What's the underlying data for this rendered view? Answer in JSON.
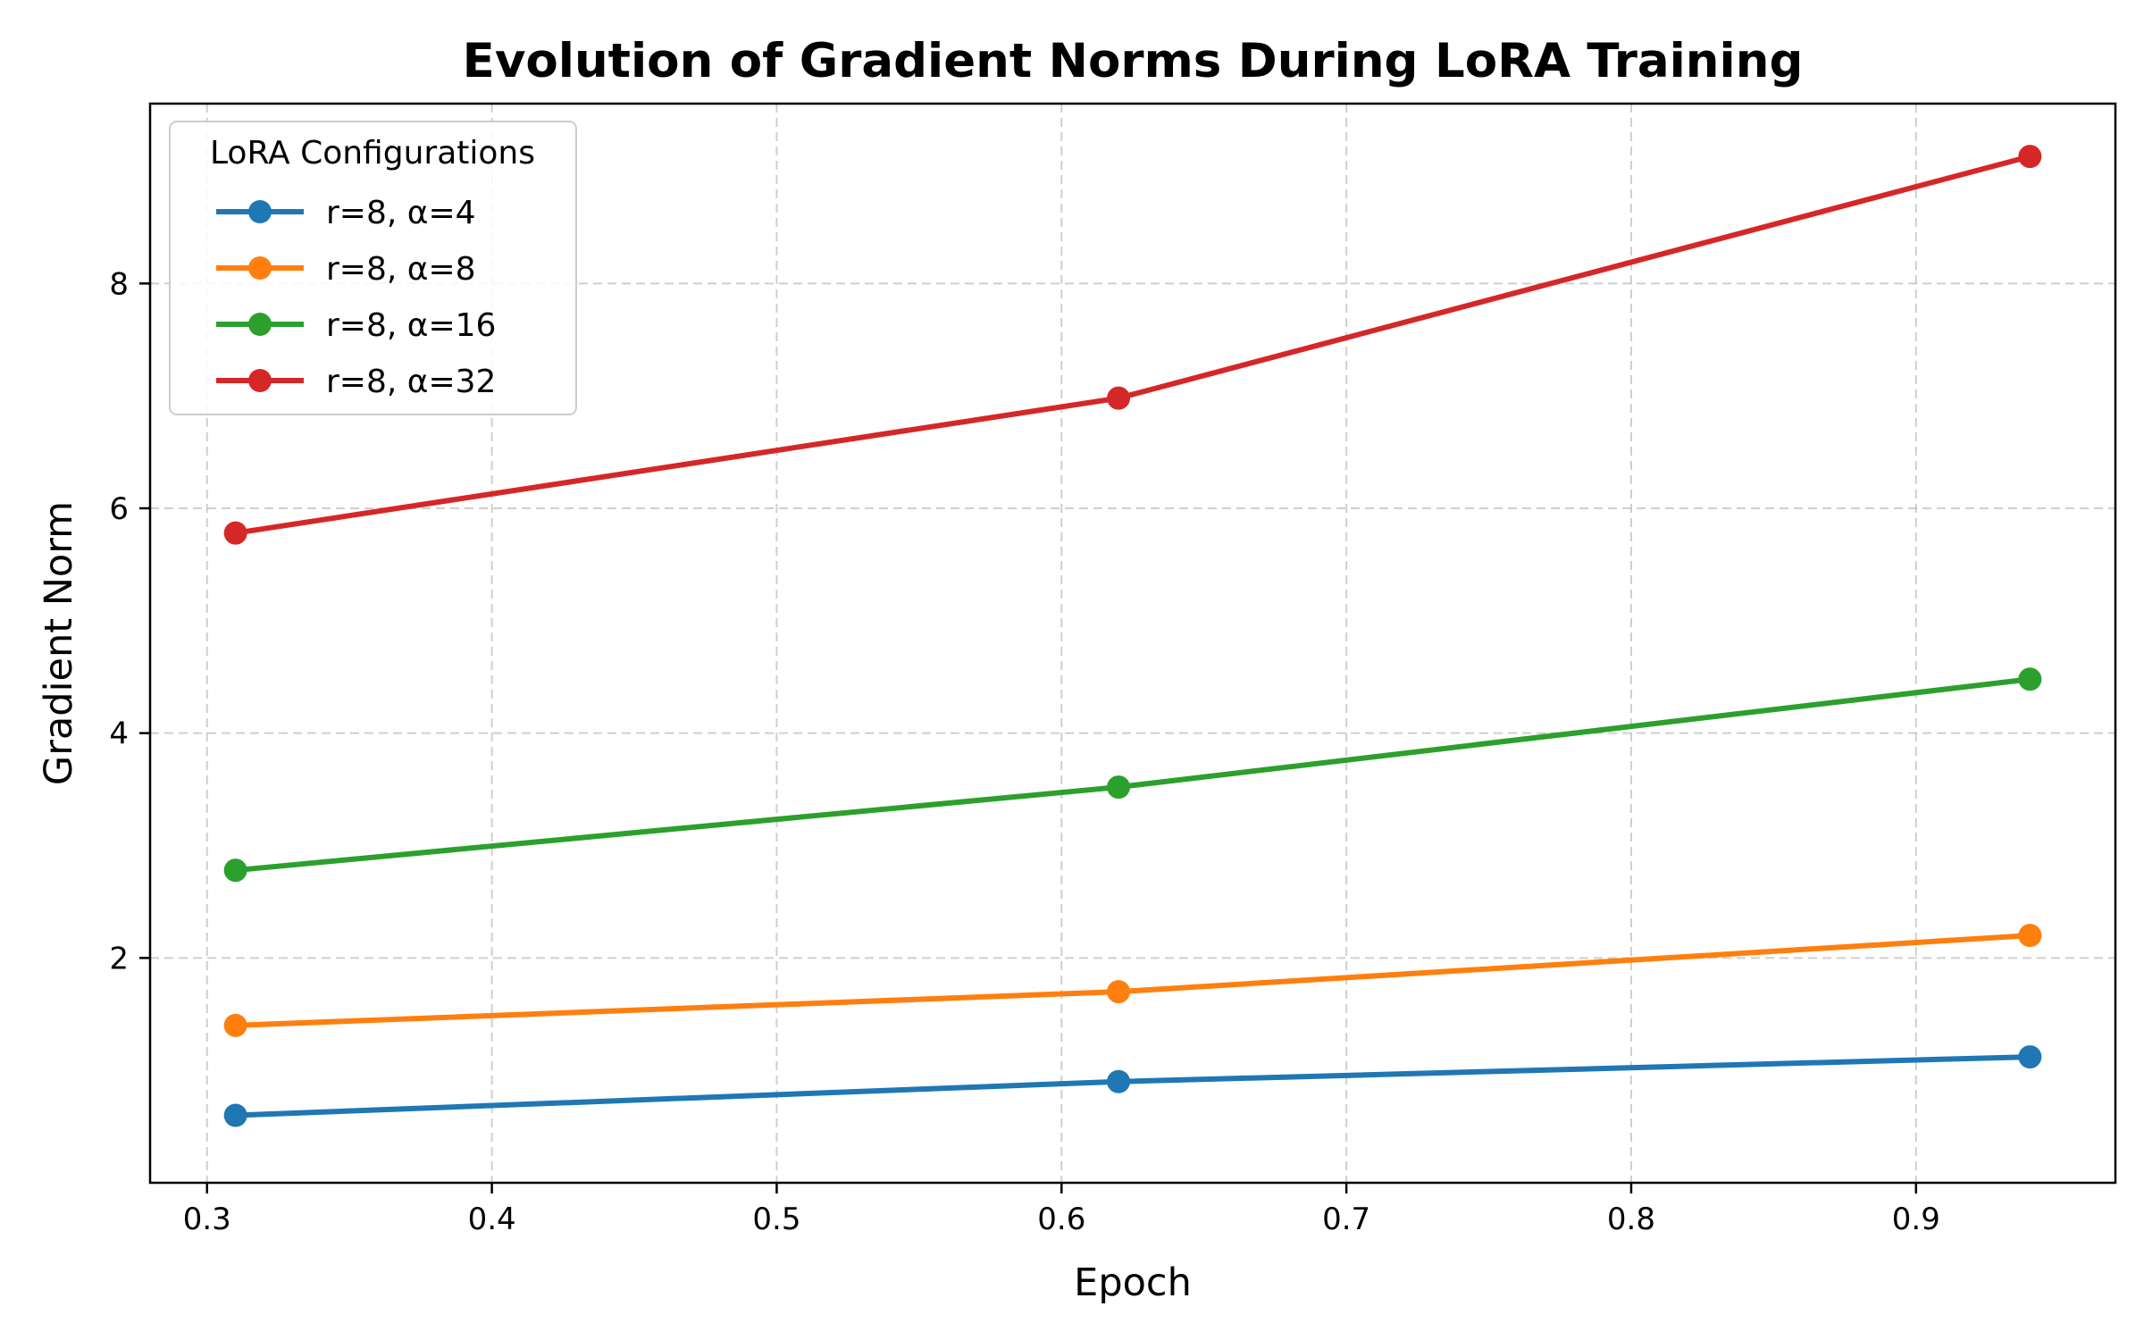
{
  "chart_data": {
    "type": "line",
    "title": "Evolution of Gradient Norms During LoRA Training",
    "xlabel": "Epoch",
    "ylabel": "Gradient Norm",
    "xlim": [
      0.28,
      0.97
    ],
    "ylim": [
      0.0,
      9.6
    ],
    "xticks": [
      0.3,
      0.4,
      0.5,
      0.6,
      0.7,
      0.8,
      0.9
    ],
    "xtick_labels": [
      "0.3",
      "0.4",
      "0.5",
      "0.6",
      "0.7",
      "0.8",
      "0.9"
    ],
    "yticks": [
      2,
      4,
      6,
      8
    ],
    "ytick_labels": [
      "2",
      "4",
      "6",
      "8"
    ],
    "grid": true,
    "legend_title": "LoRA Configurations",
    "legend_position": "top-left",
    "x": [
      0.31,
      0.62,
      0.94
    ],
    "series": [
      {
        "name": "r=8, α=4",
        "color": "#1f77b4",
        "values": [
          0.6,
          0.9,
          1.12
        ]
      },
      {
        "name": "r=8, α=8",
        "color": "#ff7f0e",
        "values": [
          1.4,
          1.7,
          2.2
        ]
      },
      {
        "name": "r=8, α=16",
        "color": "#2ca02c",
        "values": [
          2.78,
          3.52,
          4.48
        ]
      },
      {
        "name": "r=8, α=32",
        "color": "#d62728",
        "values": [
          5.78,
          6.98,
          9.13
        ]
      }
    ]
  }
}
